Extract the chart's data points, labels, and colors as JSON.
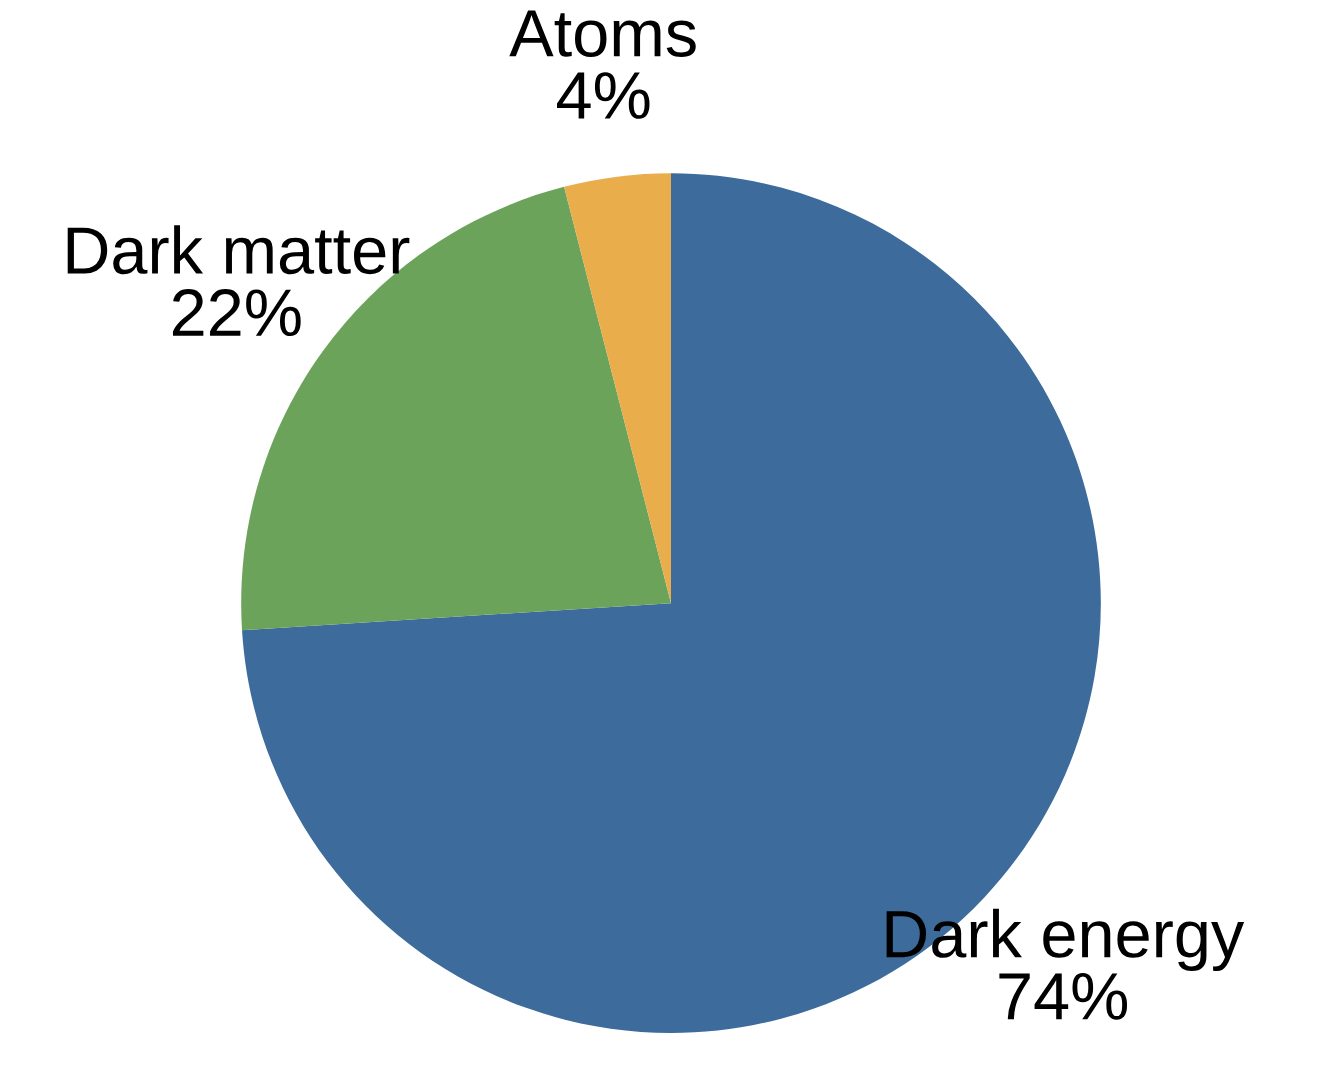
{
  "chart_data": {
    "type": "pie",
    "categories": [
      "Dark energy",
      "Dark matter",
      "Atoms"
    ],
    "values": [
      74,
      22,
      4
    ],
    "colors": [
      "#3c6b9c",
      "#6ca35a",
      "#e9ad4c"
    ],
    "value_labels": [
      "74%",
      "22%",
      "4%"
    ]
  }
}
